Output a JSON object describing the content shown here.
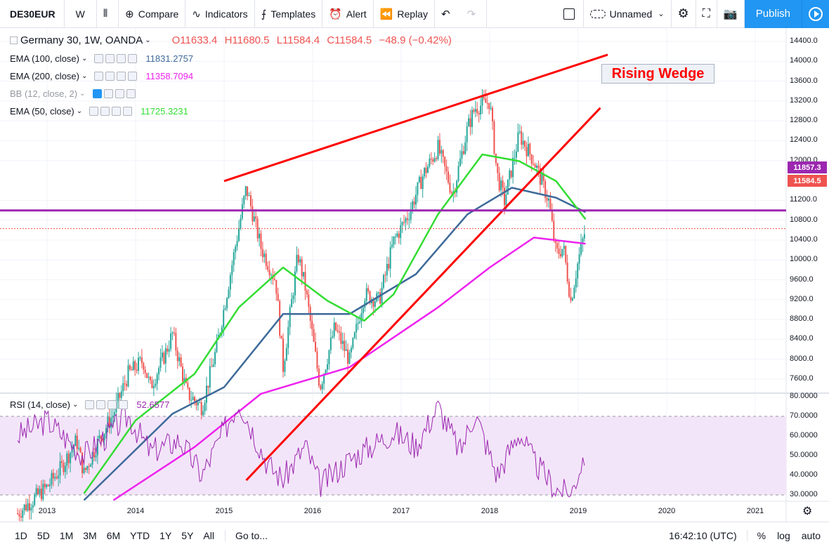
{
  "toolbar": {
    "symbol": "DE30EUR",
    "interval": "W",
    "compare": "Compare",
    "indicators": "Indicators",
    "templates": "Templates",
    "alert": "Alert",
    "replay": "Replay",
    "layout_name": "Unnamed",
    "publish": "Publish"
  },
  "legend": {
    "symbol_title": "Germany 30, 1W, OANDA",
    "open": "O11633.4",
    "high": "H11680.5",
    "low": "L11584.4",
    "close": "C11584.5",
    "change": "−48.9 (−0.42%)",
    "ema100_label": "EMA (100, close)",
    "ema100_value": "11831.2757",
    "ema200_label": "EMA (200, close)",
    "ema200_value": "11358.7094",
    "bb_label": "BB (12, close, 2)",
    "ema50_label": "EMA (50, close)",
    "ema50_value": "11725.3231",
    "rsi_label": "RSI (14, close)",
    "rsi_value": "52.6577"
  },
  "annotation": "Rising Wedge",
  "price_axis": [
    "14400.0",
    "14000.0",
    "13600.0",
    "13200.0",
    "12800.0",
    "12400.0",
    "12000.0",
    "11200.0",
    "10800.0",
    "10400.0",
    "10000.0",
    "9600.0",
    "9200.0",
    "8800.0",
    "8400.0",
    "8000.0",
    "7600.0"
  ],
  "price_tags": {
    "resistance": "11857.3",
    "last": "11584.5"
  },
  "rsi_axis": [
    "80.0000",
    "70.0000",
    "60.0000",
    "50.0000",
    "40.0000",
    "30.0000"
  ],
  "time_axis": [
    "2013",
    "2014",
    "2015",
    "2016",
    "2017",
    "2018",
    "2019",
    "2020",
    "2021"
  ],
  "bottom": {
    "ranges": [
      "1D",
      "5D",
      "1M",
      "3M",
      "6M",
      "YTD",
      "1Y",
      "5Y",
      "All"
    ],
    "goto": "Go to...",
    "clock": "16:42:10 (UTC)",
    "percent": "%",
    "log": "log",
    "auto": "auto"
  },
  "colors": {
    "up": "#26a69a",
    "down": "#ef5350",
    "ema50": "#33dd33",
    "ema100": "#3d6a99",
    "ema200": "#ee22ee",
    "wedge": "#ff0000",
    "resistance": "#9c27b0",
    "rsi": "#9c27b0",
    "rsi_band": "#f3e5f9",
    "accent": "#2196f3"
  },
  "chart_data": {
    "type": "candlestick",
    "title": "Germany 30, 1W, OANDA",
    "ylim": [
      7400,
      14600
    ],
    "rsi_ylim": [
      28,
      82
    ],
    "x": [
      "2013",
      "2014",
      "2015",
      "2016",
      "2017",
      "2018",
      "2019",
      "2020",
      "2021"
    ],
    "close_path": [
      [
        "2012-09",
        7300
      ],
      [
        "2013-01",
        7700
      ],
      [
        "2013-03",
        8000
      ],
      [
        "2013-05",
        8400
      ],
      [
        "2013-06",
        7900
      ],
      [
        "2013-08",
        8400
      ],
      [
        "2013-10",
        8800
      ],
      [
        "2013-12",
        9400
      ],
      [
        "2014-02",
        9600
      ],
      [
        "2014-03",
        9200
      ],
      [
        "2014-05",
        9700
      ],
      [
        "2014-06",
        10000
      ],
      [
        "2014-08",
        9100
      ],
      [
        "2014-10",
        8900
      ],
      [
        "2014-12",
        9800
      ],
      [
        "2015-02",
        11000
      ],
      [
        "2015-04",
        12200
      ],
      [
        "2015-06",
        11300
      ],
      [
        "2015-08",
        10800
      ],
      [
        "2015-09",
        9500
      ],
      [
        "2015-11",
        11200
      ],
      [
        "2015-12",
        10700
      ],
      [
        "2016-02",
        9200
      ],
      [
        "2016-04",
        10100
      ],
      [
        "2016-06",
        9600
      ],
      [
        "2016-08",
        10600
      ],
      [
        "2016-10",
        10500
      ],
      [
        "2016-12",
        11400
      ],
      [
        "2017-02",
        11800
      ],
      [
        "2017-04",
        12400
      ],
      [
        "2017-06",
        12800
      ],
      [
        "2017-08",
        12100
      ],
      [
        "2017-10",
        13100
      ],
      [
        "2017-11",
        13400
      ],
      [
        "2018-01",
        13500
      ],
      [
        "2018-02",
        12400
      ],
      [
        "2018-03",
        12000
      ],
      [
        "2018-05",
        13000
      ],
      [
        "2018-07",
        12600
      ],
      [
        "2018-08",
        12300
      ],
      [
        "2018-09",
        12000
      ],
      [
        "2018-10",
        11200
      ],
      [
        "2018-11",
        11300
      ],
      [
        "2018-12",
        10500
      ],
      [
        "2019-01",
        11100
      ],
      [
        "2019-02",
        11584.5
      ]
    ],
    "ema50_points": [
      [
        "2013-06",
        7600
      ],
      [
        "2014-01",
        8700
      ],
      [
        "2014-09",
        9400
      ],
      [
        "2015-03",
        10400
      ],
      [
        "2015-09",
        11000
      ],
      [
        "2016-03",
        10500
      ],
      [
        "2016-08",
        10200
      ],
      [
        "2016-12",
        10600
      ],
      [
        "2017-06",
        11800
      ],
      [
        "2017-12",
        12700
      ],
      [
        "2018-05",
        12600
      ],
      [
        "2018-10",
        12300
      ],
      [
        "2019-02",
        11725
      ]
    ],
    "ema100_points": [
      [
        "2013-06",
        7500
      ],
      [
        "2014-06",
        8800
      ],
      [
        "2015-01",
        9200
      ],
      [
        "2015-09",
        10300
      ],
      [
        "2016-06",
        10300
      ],
      [
        "2017-03",
        10900
      ],
      [
        "2017-10",
        11800
      ],
      [
        "2018-04",
        12200
      ],
      [
        "2018-10",
        12050
      ],
      [
        "2019-02",
        11831
      ]
    ],
    "ema200_points": [
      [
        "2013-10",
        7500
      ],
      [
        "2014-09",
        8300
      ],
      [
        "2015-06",
        9100
      ],
      [
        "2016-06",
        9500
      ],
      [
        "2017-06",
        10400
      ],
      [
        "2018-01",
        11000
      ],
      [
        "2018-07",
        11450
      ],
      [
        "2019-02",
        11358
      ]
    ],
    "rsi_points": [
      [
        "2012-09",
        60
      ],
      [
        "2013-01",
        68
      ],
      [
        "2013-06",
        50
      ],
      [
        "2013-12",
        70
      ],
      [
        "2014-03",
        52
      ],
      [
        "2014-07",
        58
      ],
      [
        "2014-10",
        40
      ],
      [
        "2015-03",
        78
      ],
      [
        "2015-07",
        45
      ],
      [
        "2015-09",
        38
      ],
      [
        "2015-12",
        55
      ],
      [
        "2016-02",
        35
      ],
      [
        "2016-06",
        48
      ],
      [
        "2016-12",
        62
      ],
      [
        "2017-03",
        55
      ],
      [
        "2017-06",
        75
      ],
      [
        "2017-09",
        52
      ],
      [
        "2017-11",
        72
      ],
      [
        "2018-02",
        40
      ],
      [
        "2018-05",
        62
      ],
      [
        "2018-07",
        47
      ],
      [
        "2018-10",
        33
      ],
      [
        "2018-12",
        30
      ],
      [
        "2019-02",
        52.66
      ]
    ],
    "wedge_upper": [
      [
        "2015-01",
        12300
      ],
      [
        "2019-05",
        14200
      ]
    ],
    "wedge_lower": [
      [
        "2015-04",
        7800
      ],
      [
        "2019-04",
        13400
      ]
    ],
    "resistance": 11857.3
  }
}
